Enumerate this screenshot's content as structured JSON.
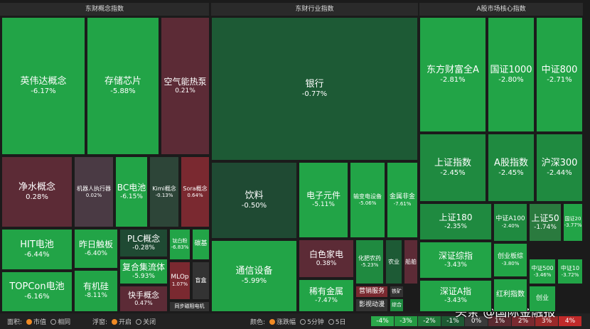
{
  "panels": [
    {
      "title": "东财概念指数",
      "tiles": [
        {
          "name": "英伟达概念",
          "change": "-6.17%"
        },
        {
          "name": "存储芯片",
          "change": "-5.88%"
        },
        {
          "name": "空气能热泵",
          "change": "0.21%"
        },
        {
          "name": "净水概念",
          "change": "0.28%"
        },
        {
          "name": "机器人执行器",
          "change": "0.02%"
        },
        {
          "name": "BC电池",
          "change": "-6.15%"
        },
        {
          "name": "Kimi概念",
          "change": "-0.13%"
        },
        {
          "name": "Sora概念",
          "change": "0.64%"
        },
        {
          "name": "HIT电池",
          "change": "-6.44%"
        },
        {
          "name": "TOPCon电池",
          "change": "-6.16%"
        },
        {
          "name": "昨日触板",
          "change": "-6.40%"
        },
        {
          "name": "有机硅",
          "change": "-8.11%"
        },
        {
          "name": "PLC概念",
          "change": "-0.28%"
        },
        {
          "name": "复合集流体",
          "change": "-5.93%"
        },
        {
          "name": "快手概念",
          "change": "0.47%"
        },
        {
          "name": "钛白粉",
          "change": "-6.83%"
        },
        {
          "name": "碳基"
        },
        {
          "name": "MLOp",
          "change": "1.07%"
        },
        {
          "name": "盲盒"
        },
        {
          "name": "同步磁阻电机"
        }
      ]
    },
    {
      "title": "东财行业指数",
      "tiles": [
        {
          "name": "银行",
          "change": "-0.77%"
        },
        {
          "name": "饮料",
          "change": "-0.50%"
        },
        {
          "name": "电子元件",
          "change": "-5.11%"
        },
        {
          "name": "输变电设备",
          "change": "-5.06%"
        },
        {
          "name": "金属非金",
          "change": "-7.61%"
        },
        {
          "name": "通信设备",
          "change": "-5.99%"
        },
        {
          "name": "白色家电",
          "change": "0.38%"
        },
        {
          "name": "稀有金属",
          "change": "-7.47%"
        },
        {
          "name": "化肥农药",
          "change": "-5.23%"
        },
        {
          "name": "农业"
        },
        {
          "name": "船舶"
        },
        {
          "name": "营销服务"
        },
        {
          "name": "铁矿"
        },
        {
          "name": "影视动漫"
        },
        {
          "name": "综合"
        }
      ]
    },
    {
      "title": "A股市场核心指数",
      "tiles": [
        {
          "name": "东方财富全A",
          "change": "-2.81%"
        },
        {
          "name": "国证1000",
          "change": "-2.80%"
        },
        {
          "name": "中证800",
          "change": "-2.71%"
        },
        {
          "name": "上证指数",
          "change": "-2.45%"
        },
        {
          "name": "A股指数",
          "change": "-2.45%"
        },
        {
          "name": "沪深300",
          "change": "-2.44%"
        },
        {
          "name": "上证180",
          "change": "-2.35%"
        },
        {
          "name": "中证A100",
          "change": "-2.40%"
        },
        {
          "name": "上证50",
          "change": "-1.74%"
        },
        {
          "name": "国证20",
          "change": "-3.77%"
        },
        {
          "name": "深证综指",
          "change": "-3.43%"
        },
        {
          "name": "深证A指",
          "change": "-3.43%"
        },
        {
          "name": "创业板综",
          "change": "-3.80%"
        },
        {
          "name": "中证500",
          "change": "-3.46%"
        },
        {
          "name": "中证10",
          "change": "-3.72%"
        },
        {
          "name": "红利指数"
        },
        {
          "name": "创业"
        }
      ]
    }
  ],
  "toolbar": {
    "area_label": "面积:",
    "area_options": [
      "市值",
      "相同"
    ],
    "float_label": "浮窗:",
    "float_options": [
      "开启",
      "关闭"
    ],
    "color_label": "颜色:",
    "color_options": [
      "涨跌幅",
      "5分钟",
      "5日"
    ]
  },
  "legend": [
    "-4%",
    "-3%",
    "-2%",
    "-1%",
    "0%",
    "1%",
    "2%",
    "3%",
    "4%"
  ],
  "watermark": "头条 @国际金融报"
}
